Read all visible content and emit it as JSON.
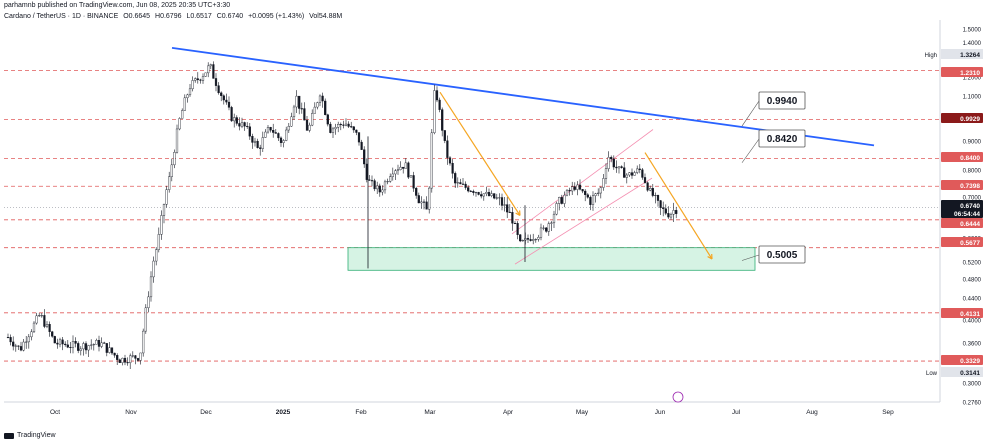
{
  "header": {
    "published": "parhamnb published on TradingView.com, Jun 08, 2025 20:35 UTC+3:30",
    "symbol": "Cardano / TetherUS · 1D · BINANCE",
    "open": "O0.6645",
    "high": "H0.6796",
    "low": "L0.6517",
    "close": "C0.6740",
    "change": "+0.0095 (+1.43%)",
    "volume": "Vol54.88M"
  },
  "footer": {
    "brand": "TradingView"
  },
  "chart_data": {
    "type": "candlestick",
    "x_labels": [
      "Oct",
      "Nov",
      "Dec",
      "2025",
      "Feb",
      "Mar",
      "Apr",
      "May",
      "Jun",
      "Jul",
      "Aug",
      "Sep"
    ],
    "y_ticks": [
      "1.5000",
      "1.4000",
      "1.3000",
      "1.2000",
      "1.1000",
      "1.0000",
      "0.9000",
      "0.8000",
      "0.7000",
      "0.6000",
      "0.5200",
      "0.4800",
      "0.4400",
      "0.4000",
      "0.3600",
      "0.3000",
      "0.2760"
    ],
    "price_tags": [
      {
        "label": "High",
        "value": "1.3264",
        "kind": "info"
      },
      {
        "value": "1.2310",
        "kind": "red"
      },
      {
        "value": "0.9929",
        "kind": "darkred"
      },
      {
        "value": "0.8400",
        "kind": "red"
      },
      {
        "value": "0.7398",
        "kind": "red"
      },
      {
        "value": "0.6740",
        "kind": "current"
      },
      {
        "value": "06:54:44",
        "kind": "countdown"
      },
      {
        "value": "0.6444",
        "kind": "red"
      },
      {
        "value": "0.5677",
        "kind": "red"
      },
      {
        "value": "0.4131",
        "kind": "red"
      },
      {
        "value": "0.3329",
        "kind": "red"
      },
      {
        "label": "Low",
        "value": "0.3141",
        "kind": "info"
      }
    ],
    "horizontal_levels": [
      1.231,
      0.9929,
      0.84,
      0.7398,
      0.6444,
      0.5677,
      0.4131,
      0.3329
    ],
    "callouts": [
      "0.9940",
      "0.8420",
      "0.5005"
    ],
    "support_zone": {
      "low": 0.5005,
      "high": 0.5677
    },
    "colors": {
      "level": "#e05a5a",
      "trendline": "#2962ff",
      "zone_fill": "#d6f3e4",
      "zone_border": "#2fae74",
      "projection": "#f5a623",
      "channel": "#f48fb1",
      "candle": "#131722"
    }
  }
}
